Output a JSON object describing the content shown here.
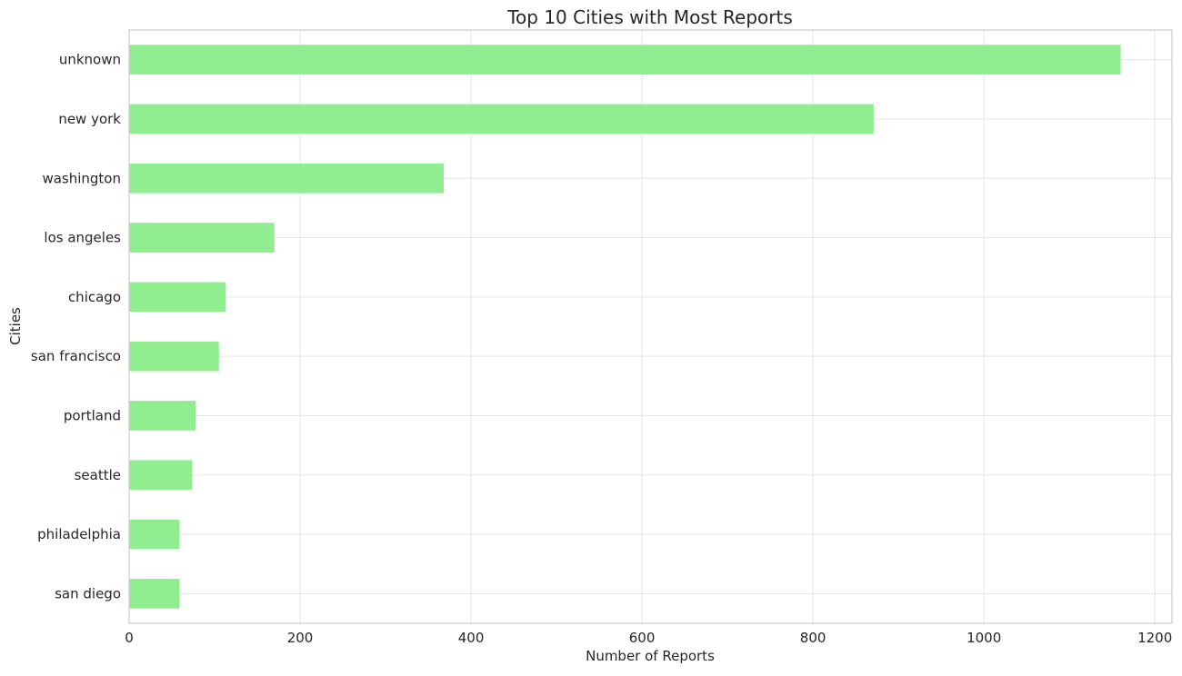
{
  "chart_data": {
    "type": "bar",
    "orientation": "horizontal",
    "title": "Top 10 Cities with Most Reports",
    "xlabel": "Number of Reports",
    "ylabel": "Cities",
    "categories": [
      "unknown",
      "new york",
      "washington",
      "los angeles",
      "chicago",
      "san francisco",
      "portland",
      "seattle",
      "philadelphia",
      "san diego"
    ],
    "values": [
      1160,
      871,
      368,
      170,
      113,
      105,
      78,
      74,
      59,
      59
    ],
    "xlim": [
      0,
      1220
    ],
    "xticks": [
      0,
      200,
      400,
      600,
      800,
      1000,
      1200
    ],
    "grid": true,
    "bar_color": "#90ee90",
    "grid_color": "#e5e5e5",
    "spine_color": "#cccccc"
  }
}
